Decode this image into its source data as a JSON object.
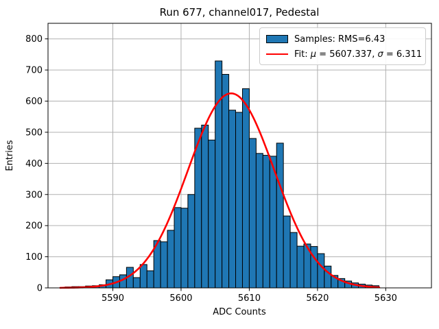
{
  "chart_data": {
    "type": "bar",
    "subtype": "histogram-with-gaussian-fit",
    "title": "Run 677, channel017, Pedestal",
    "xlabel": "ADC Counts",
    "ylabel": "Entries",
    "xlim": [
      5580.5,
      5636.7
    ],
    "ylim": [
      0,
      850
    ],
    "xticks": [
      5590,
      5600,
      5610,
      5620,
      5630
    ],
    "yticks": [
      0,
      100,
      200,
      300,
      400,
      500,
      600,
      700,
      800
    ],
    "grid": true,
    "legend_position": "upper right",
    "bin_start": 5583,
    "bin_width": 1,
    "categories": [
      5583,
      5584,
      5585,
      5586,
      5587,
      5588,
      5589,
      5590,
      5591,
      5592,
      5593,
      5594,
      5595,
      5596,
      5597,
      5598,
      5599,
      5600,
      5601,
      5602,
      5603,
      5604,
      5605,
      5606,
      5607,
      5608,
      5609,
      5610,
      5611,
      5612,
      5613,
      5614,
      5615,
      5616,
      5617,
      5618,
      5619,
      5620,
      5621,
      5622,
      5623,
      5624,
      5625,
      5626,
      5627,
      5628
    ],
    "values": [
      3,
      4,
      4,
      6,
      7,
      10,
      26,
      36,
      42,
      66,
      33,
      75,
      55,
      152,
      148,
      185,
      258,
      256,
      300,
      513,
      523,
      475,
      729,
      686,
      571,
      564,
      640,
      480,
      432,
      426,
      423,
      465,
      231,
      178,
      134,
      141,
      133,
      110,
      70,
      40,
      30,
      22,
      16,
      12,
      9,
      7
    ],
    "series": [
      {
        "name": "Samples: RMS=6.43",
        "type": "histogram",
        "rms": 6.43
      },
      {
        "name": "Fit: μ = 5607.337, σ = 6.311",
        "type": "gaussian",
        "mu": 5607.337,
        "sigma": 6.311,
        "amplitude": 625,
        "x_range": [
          5582.3,
          5629.1
        ]
      }
    ],
    "colors": {
      "bar_fill": "#1f77b4",
      "bar_edge": "#000000",
      "fit_line": "#ff0000",
      "grid": "#b0b0b0",
      "spine": "#000000",
      "background": "#ffffff",
      "text": "#000000"
    }
  },
  "legend": {
    "items": [
      {
        "marker": "patch",
        "label": "Samples: RMS=6.43"
      },
      {
        "marker": "line",
        "label": "Fit: μ = 5607.337, σ = 6.311",
        "label_parts": {
          "prefix": "Fit: ",
          "mu_symbol": "μ",
          "mu_value": " = 5607.337, ",
          "sigma_symbol": "σ",
          "sigma_value": " = 6.311"
        }
      }
    ]
  }
}
